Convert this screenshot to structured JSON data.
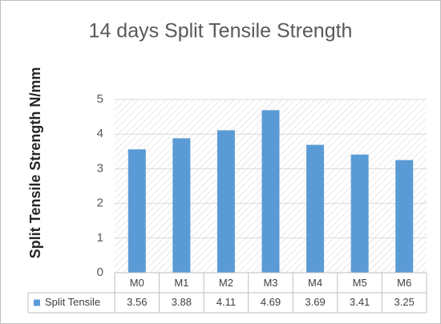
{
  "chart_data": {
    "type": "bar",
    "title": "14 days Split Tensile  Strength",
    "y_label": "Split Tensile  Strength N/mm",
    "categories": [
      "M0",
      "M1",
      "M2",
      "M3",
      "M4",
      "M5",
      "M6"
    ],
    "series": [
      {
        "name": "Split Tensile",
        "color": "#5b9bd5",
        "values": [
          3.56,
          3.88,
          4.11,
          4.69,
          3.69,
          3.41,
          3.25
        ]
      }
    ],
    "ylim": [
      0,
      5
    ],
    "yticks": [
      0,
      1,
      2,
      3,
      4,
      5
    ],
    "grid": true,
    "data_table": true
  }
}
